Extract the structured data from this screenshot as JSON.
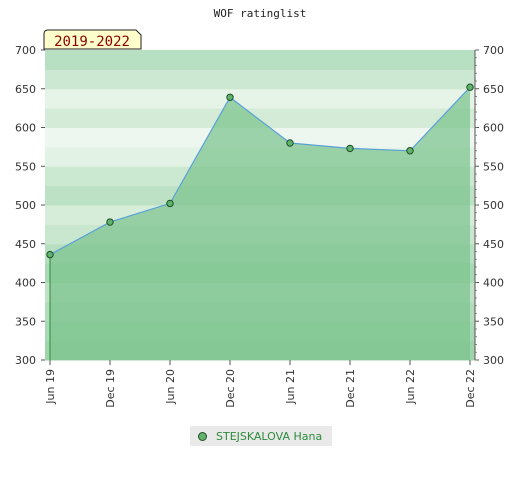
{
  "chart_data": {
    "type": "area",
    "title": "WOF ratinglist",
    "badge": "2019-2022",
    "categories": [
      "Jun 19",
      "Dec 19",
      "Jun 20",
      "Dec 20",
      "Jun 21",
      "Dec 21",
      "Jun 22",
      "Dec 22"
    ],
    "series": [
      {
        "name": "STEJSKALOVA Hana",
        "values": [
          436,
          478,
          502,
          639,
          580,
          573,
          570,
          652
        ]
      }
    ],
    "ylim": [
      300,
      700
    ],
    "yticks": [
      300,
      350,
      400,
      450,
      500,
      550,
      600,
      650,
      700
    ],
    "grid": true,
    "legend_position": "bottom",
    "colors": {
      "line": "#5aa0d8",
      "fill": "#7cc48e",
      "marker": "#5fb36d",
      "marker_edge": "#1f4d25",
      "badge_bg": "#ffffcc"
    }
  }
}
